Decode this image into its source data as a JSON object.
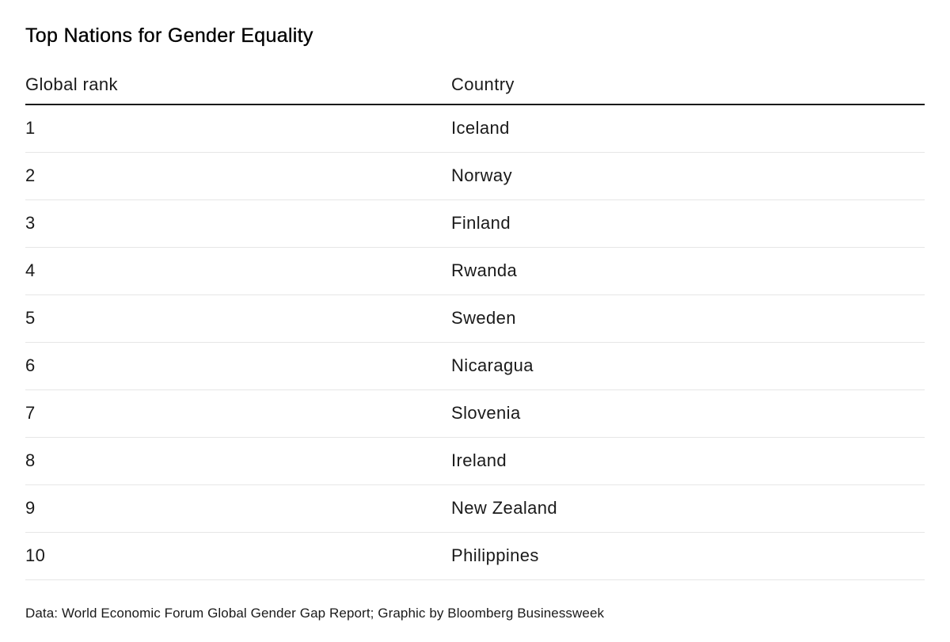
{
  "title": "Top Nations for Gender Equality",
  "table": {
    "columns": [
      "Global rank",
      "Country"
    ],
    "rows": [
      {
        "rank": "1",
        "country": "Iceland"
      },
      {
        "rank": "2",
        "country": "Norway"
      },
      {
        "rank": "3",
        "country": "Finland"
      },
      {
        "rank": "4",
        "country": "Rwanda"
      },
      {
        "rank": "5",
        "country": "Sweden"
      },
      {
        "rank": "6",
        "country": "Nicaragua"
      },
      {
        "rank": "7",
        "country": "Slovenia"
      },
      {
        "rank": "8",
        "country": "Ireland"
      },
      {
        "rank": "9",
        "country": "New Zealand"
      },
      {
        "rank": "10",
        "country": "Philippines"
      }
    ]
  },
  "footer": "Data: World Economic Forum Global Gender Gap Report; Graphic by Bloomberg Businessweek",
  "colors": {
    "background": "#ffffff",
    "text": "#1a1a1a",
    "title_text": "#000000",
    "header_rule": "#1a1a1a",
    "row_rule": "#e6e6e6"
  },
  "chart_data": {
    "type": "table",
    "title": "Top Nations for Gender Equality",
    "columns": [
      "Global rank",
      "Country"
    ],
    "rows": [
      [
        1,
        "Iceland"
      ],
      [
        2,
        "Norway"
      ],
      [
        3,
        "Finland"
      ],
      [
        4,
        "Rwanda"
      ],
      [
        5,
        "Sweden"
      ],
      [
        6,
        "Nicaragua"
      ],
      [
        7,
        "Slovenia"
      ],
      [
        8,
        "Ireland"
      ],
      [
        9,
        "New Zealand"
      ],
      [
        10,
        "Philippines"
      ]
    ],
    "source_note": "Data: World Economic Forum Global Gender Gap Report; Graphic by Bloomberg Businessweek",
    "layout": {
      "grid": "horizontal row rules only",
      "header_rule": "heavy",
      "alignment": "left"
    }
  }
}
